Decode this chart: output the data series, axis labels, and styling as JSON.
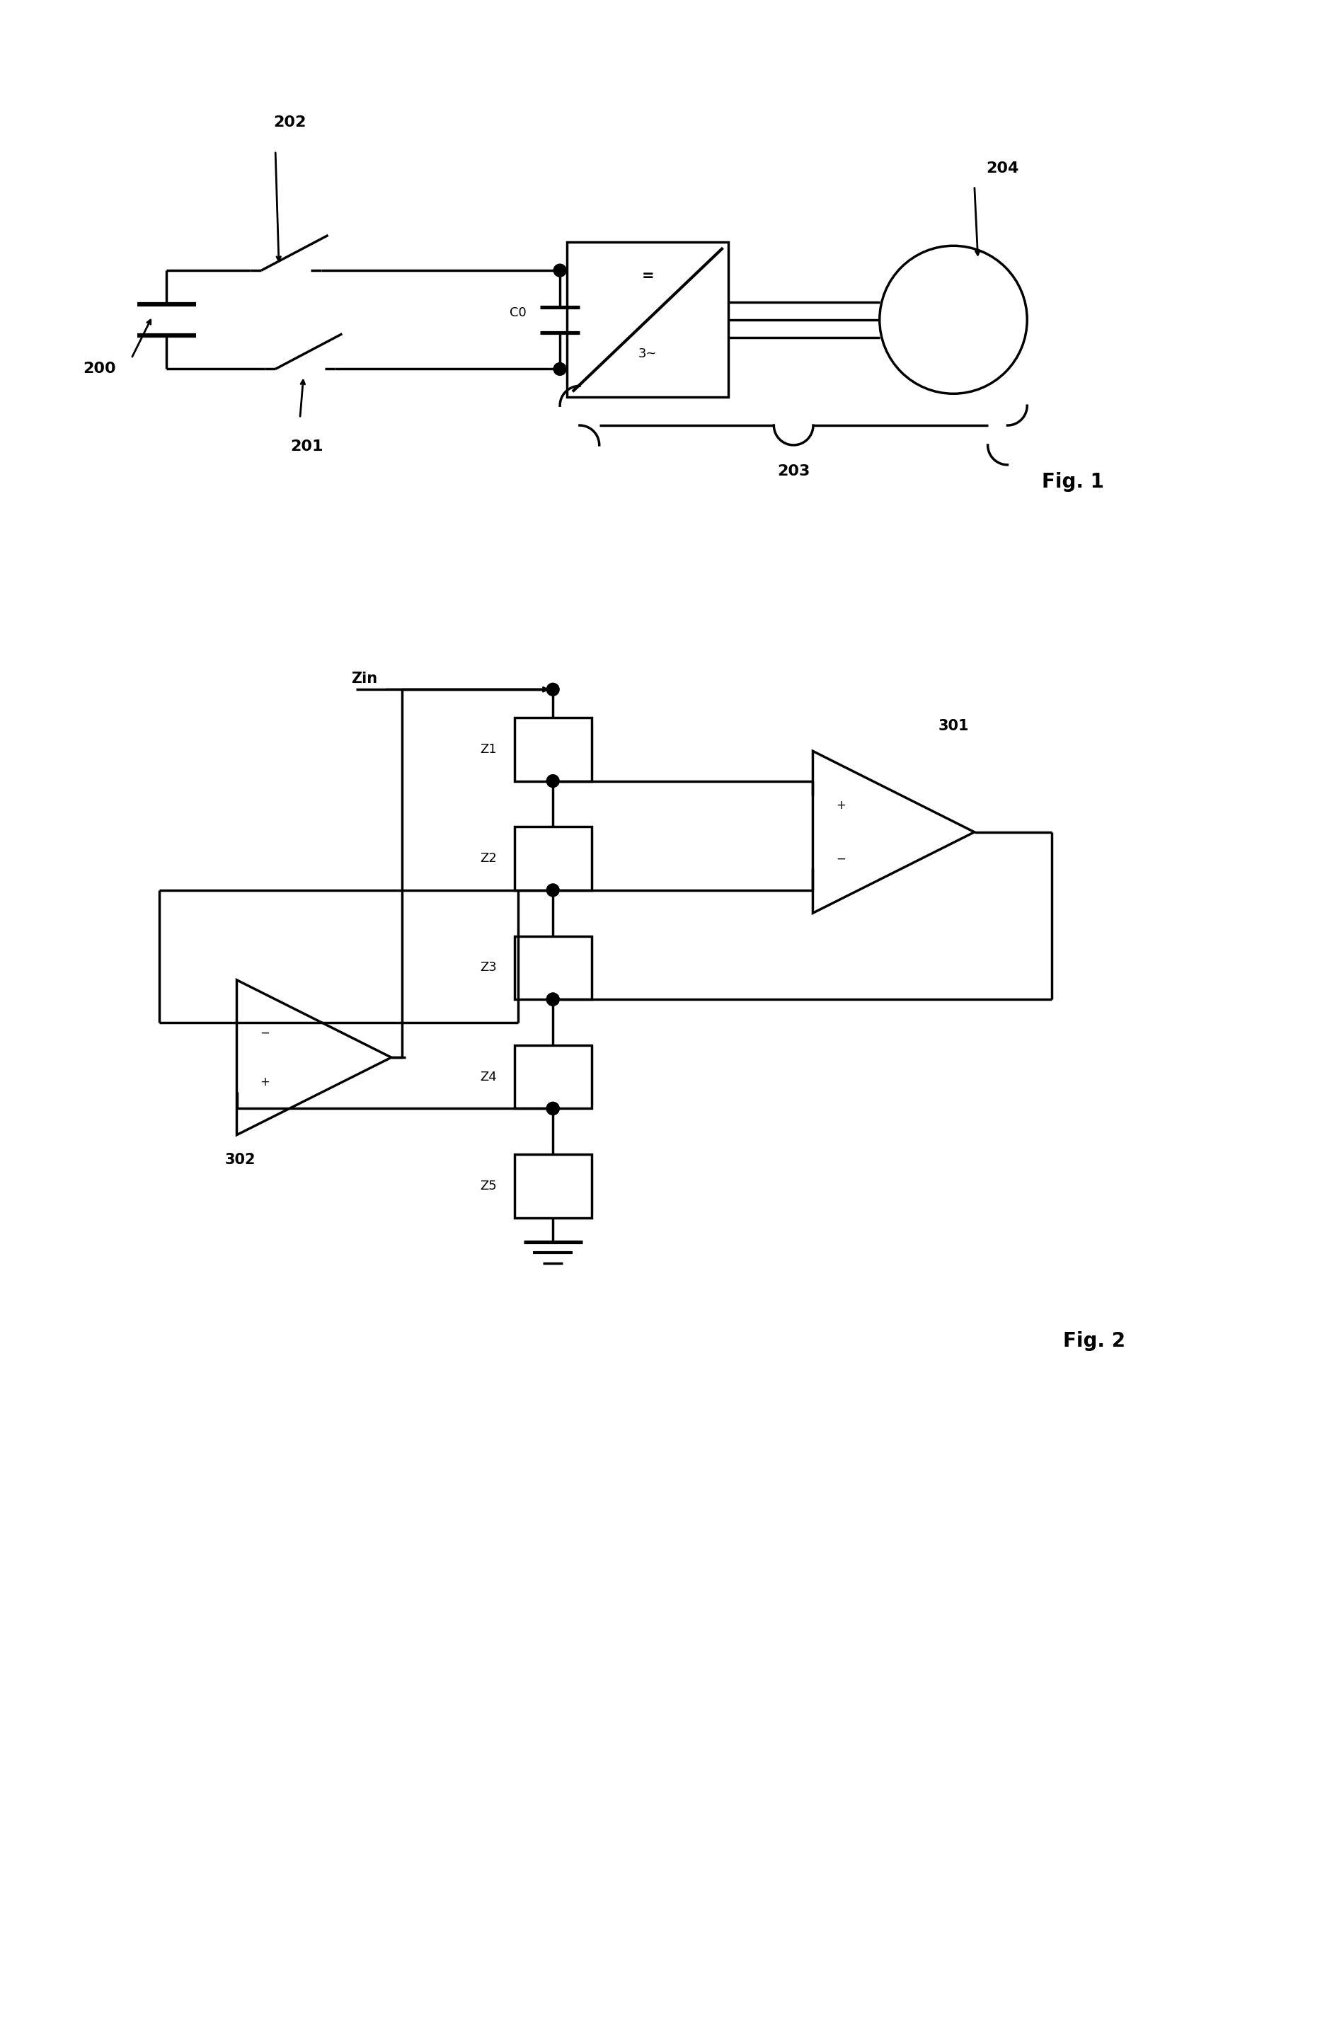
{
  "fig_width": 18.83,
  "fig_height": 28.77,
  "bg_color": "#ffffff",
  "line_color": "#000000",
  "line_width": 2.5,
  "fig1_label": "Fig. 1",
  "fig2_label": "Fig. 2",
  "label_200": "200",
  "label_201": "201",
  "label_202": "202",
  "label_203": "203",
  "label_204": "204",
  "label_301": "301",
  "label_302": "302",
  "label_Zin": "Zin",
  "label_C0": "C0",
  "label_3tilde": "3~",
  "label_equals": "=",
  "label_Z1": "Z1",
  "label_Z2": "Z2",
  "label_Z3": "Z3",
  "label_Z4": "Z4",
  "label_Z5": "Z5"
}
